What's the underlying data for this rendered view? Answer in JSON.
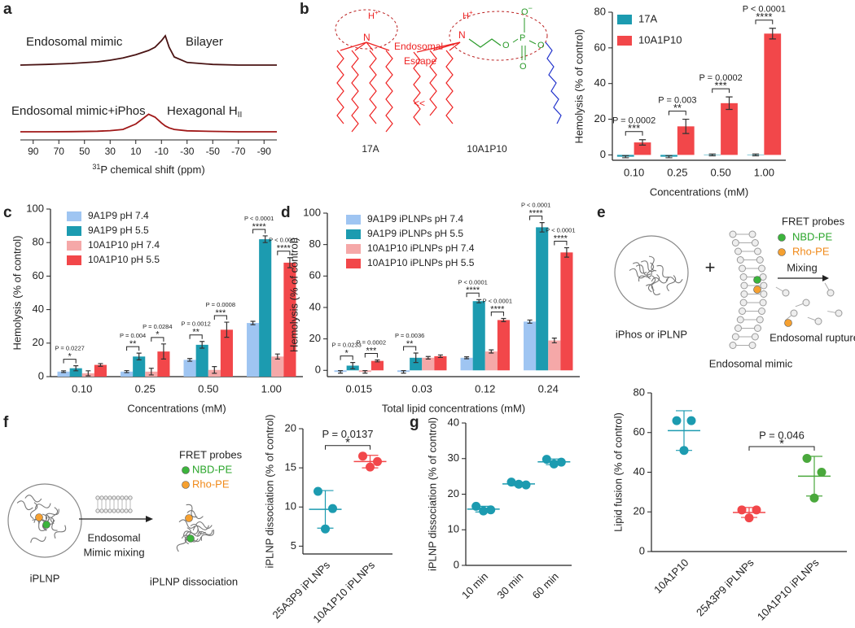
{
  "panel_labels": [
    "a",
    "b",
    "c",
    "d",
    "e",
    "f",
    "g"
  ],
  "diagrams": {
    "b": {
      "molecules": [
        "17A",
        "10A1P10"
      ],
      "escape": [
        "Endosomal",
        "Escape"
      ],
      "arrow": "<<",
      "atoms_17a": [
        "H",
        "+",
        "N"
      ],
      "atoms_10a1p10": [
        "H",
        "+",
        "N",
        "O",
        "−",
        "O",
        "P",
        "O",
        "O"
      ]
    },
    "e": {
      "fret_title": "FRET probes",
      "probes": [
        "NBD-PE",
        "Rho-PE"
      ],
      "plus": "+",
      "mixing": "Mixing",
      "source": "iPhos or iPLNP",
      "mimic": "Endosomal mimic",
      "result": "Endosomal rupture"
    },
    "f": {
      "fret_title": "FRET probes",
      "probes": [
        "NBD-PE",
        "Rho-PE"
      ],
      "mixing": [
        "Endosomal",
        "Mimic mixing"
      ],
      "source": "iPLNP",
      "result": "iPLNP dissociation"
    }
  },
  "chart_data": [
    {
      "type": "spectrum",
      "x_label_sup": "31",
      "x_label": "P chemical shift (ppm)",
      "xlim": [
        100,
        -100
      ],
      "xticks": [
        90,
        70,
        50,
        30,
        10,
        -10,
        -30,
        -50,
        -70,
        -90
      ],
      "x": [
        100,
        80,
        60,
        40,
        30,
        20,
        10,
        0,
        -5,
        -10,
        -13,
        -16,
        -20,
        -30,
        -50,
        -70,
        -100
      ],
      "series": [
        {
          "name": "Endosomal mimic",
          "annotation": "Bilayer",
          "color": "#4a1414",
          "values": [
            0,
            0.02,
            0.05,
            0.1,
            0.15,
            0.22,
            0.32,
            0.45,
            0.55,
            0.75,
            0.9,
            0.55,
            0.25,
            0.08,
            0.02,
            0,
            0
          ]
        },
        {
          "name": "Endosomal mimic+iPhos",
          "annotation": "Hexagonal H",
          "annotation_sub": "II",
          "color": "#a01818",
          "values": [
            0,
            0,
            0.01,
            0.03,
            0.06,
            0.12,
            0.4,
            0.9,
            0.75,
            0.45,
            0.3,
            0.2,
            0.12,
            0.05,
            0.02,
            0,
            0
          ]
        }
      ]
    },
    {
      "type": "bar",
      "x_label": "Concentrations (mM)",
      "y_label": "Hemolysis (% of control)",
      "categories": [
        "0.10",
        "0.25",
        "0.50",
        "1.00"
      ],
      "ylim": [
        -3,
        80
      ],
      "yticks": [
        0,
        20,
        40,
        60,
        80
      ],
      "series": [
        {
          "name": "17A",
          "color": "#1c9bb0",
          "values": [
            -1,
            -1,
            0,
            0
          ],
          "errors": [
            0.6,
            0.6,
            0.5,
            0.5
          ]
        },
        {
          "name": "10A1P10",
          "color": "#f2474a",
          "values": [
            7,
            16,
            29,
            68
          ],
          "errors": [
            1.5,
            4,
            3.5,
            3
          ],
          "p_labels": [
            "P = 0.0002",
            "P = 0.003",
            "P = 0.0002",
            "P < 0.0001"
          ],
          "stars": [
            "***",
            "**",
            "***",
            "****"
          ]
        }
      ]
    },
    {
      "type": "bar",
      "x_label": "Concentrations (mM)",
      "y_label": "Hemolysis (% of control)",
      "categories": [
        "0.10",
        "0.25",
        "0.50",
        "1.00"
      ],
      "ylim": [
        0,
        100
      ],
      "yticks": [
        0,
        20,
        40,
        60,
        80,
        100
      ],
      "series": [
        {
          "name": "9A1P9 pH 7.4",
          "color": "#9fc5f2",
          "values": [
            3,
            3,
            10,
            32
          ],
          "errors": [
            0.5,
            0.6,
            0.8,
            1
          ]
        },
        {
          "name": "9A1P9 pH 5.5",
          "color": "#1c9bb0",
          "values": [
            5,
            12,
            19,
            82
          ],
          "errors": [
            1.5,
            2,
            2,
            2
          ],
          "p_labels": [
            "P = 0.0227",
            "P = 0.004",
            "P = 0.0012",
            "P < 0.0001"
          ],
          "stars": [
            "*",
            "**",
            "**",
            "****"
          ]
        },
        {
          "name": "10A1P10 pH 7.4",
          "color": "#f5a8a8",
          "values": [
            2,
            3,
            4,
            12
          ],
          "errors": [
            1.5,
            2,
            2,
            1.5
          ]
        },
        {
          "name": "10A1P10 pH 5.5",
          "color": "#f2474a",
          "values": [
            7,
            15,
            28,
            68
          ],
          "errors": [
            0.8,
            4.5,
            4.5,
            3
          ],
          "p_labels": [
            null,
            "P = 0.0284",
            "P = 0.0008",
            "P < 0.0001"
          ],
          "stars": [
            null,
            "*",
            "***",
            "****"
          ]
        }
      ]
    },
    {
      "type": "bar",
      "x_label": "Total lipid concentrations (mM)",
      "y_label": "Hemolysis (% of control)",
      "categories": [
        "0.015",
        "0.03",
        "0.12",
        "0.24"
      ],
      "ylim": [
        -4,
        100
      ],
      "yticks": [
        0,
        20,
        40,
        60,
        80,
        100
      ],
      "series": [
        {
          "name": "9A1P9 iPLNPs pH 7.4",
          "color": "#9fc5f2",
          "values": [
            -1,
            -1,
            8,
            31
          ],
          "errors": [
            0.8,
            0.8,
            0.6,
            1
          ]
        },
        {
          "name": "9A1P9 iPLNPs pH 5.5",
          "color": "#1c9bb0",
          "values": [
            3,
            8,
            44,
            91
          ],
          "errors": [
            2,
            3,
            1,
            3
          ],
          "p_labels": [
            "P = 0.0233",
            "P = 0.0036",
            "P < 0.0001",
            "P < 0.0001"
          ],
          "stars": [
            "*",
            "**",
            "****",
            "****"
          ]
        },
        {
          "name": "10A1P10 iPLNPs pH 7.4",
          "color": "#f5a8a8",
          "values": [
            -1,
            8,
            12,
            19
          ],
          "errors": [
            0.8,
            0.8,
            1,
            1.5
          ]
        },
        {
          "name": "10A1P10 iPLNPs pH 5.5",
          "color": "#f2474a",
          "values": [
            6,
            9,
            32,
            75
          ],
          "errors": [
            0.6,
            0.8,
            1,
            3
          ],
          "p_labels": [
            "P = 0.0002",
            null,
            "P < 0.0001",
            "P < 0.0001"
          ],
          "stars": [
            "***",
            null,
            "****",
            "****"
          ]
        }
      ]
    },
    {
      "type": "dot",
      "y_label": "Lipid fusion (% of control)",
      "categories": [
        "10A1P10",
        "25A3P9 iPLNPs",
        "10A1P10 iPLNPs"
      ],
      "colors": [
        "#1c9bb0",
        "#f2474a",
        "#4aa83c"
      ],
      "ylim": [
        0,
        80
      ],
      "yticks": [
        0,
        20,
        40,
        60,
        80
      ],
      "values": [
        61,
        19.7,
        38
      ],
      "errors": [
        10,
        2.5,
        10
      ],
      "points": [
        [
          66,
          66,
          51
        ],
        [
          21,
          21,
          17
        ],
        [
          47,
          40,
          27
        ]
      ],
      "p_labels": [
        null,
        null,
        "P = 0.046"
      ],
      "stars": [
        null,
        null,
        "*"
      ]
    },
    {
      "type": "dot",
      "y_label": "iPLNP dissociation (% of control)",
      "categories": [
        "25A3P9 iPLNPs",
        "10A1P10 iPLNPs"
      ],
      "colors": [
        "#1c9bb0",
        "#f2474a"
      ],
      "ylim": [
        4,
        20
      ],
      "yticks": [
        5,
        10,
        15,
        20
      ],
      "values": [
        9.7,
        15.8
      ],
      "errors": [
        2.4,
        0.8
      ],
      "points": [
        [
          12,
          9.8,
          7.2
        ],
        [
          16.5,
          15.8,
          15.1
        ]
      ],
      "p_labels": [
        null,
        "P = 0.0137"
      ],
      "stars": [
        null,
        "*"
      ]
    },
    {
      "type": "dot",
      "y_label": "iPLNP dissociation (% of control)",
      "categories": [
        "10 min",
        "30 min",
        "60 min"
      ],
      "colors": [
        "#1c9bb0",
        "#1c9bb0",
        "#1c9bb0"
      ],
      "ylim": [
        0,
        40
      ],
      "yticks": [
        0,
        10,
        20,
        30,
        40
      ],
      "values": [
        15.8,
        22.9,
        29.1
      ],
      "errors": [
        0.8,
        0.5,
        0.8
      ],
      "points": [
        [
          16.6,
          15.6,
          15.3
        ],
        [
          23.4,
          22.6,
          22.8
        ],
        [
          29.8,
          29,
          28.5
        ]
      ]
    }
  ]
}
